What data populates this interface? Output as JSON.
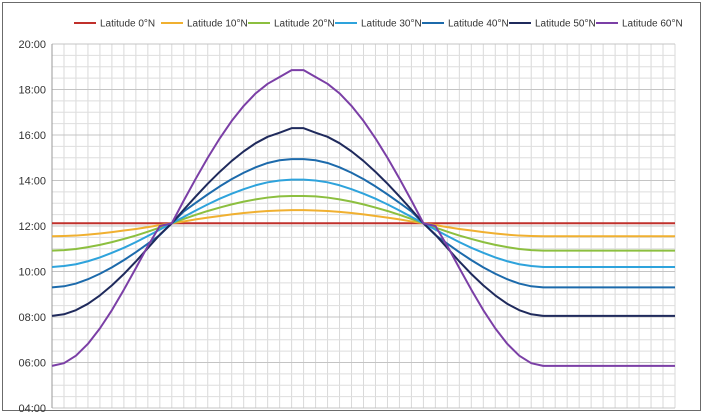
{
  "chart_data": {
    "type": "line",
    "title": "",
    "xlabel": "",
    "ylabel": "",
    "y_unit": "hours",
    "ylim": [
      4,
      20
    ],
    "y_ticks": [
      {
        "value": 4,
        "label": "04:00"
      },
      {
        "value": 6,
        "label": "06:00"
      },
      {
        "value": 8,
        "label": "08:00"
      },
      {
        "value": 10,
        "label": "10:00"
      },
      {
        "value": 12,
        "label": "12:00"
      },
      {
        "value": 14,
        "label": "14:00"
      },
      {
        "value": 16,
        "label": "16:00"
      },
      {
        "value": 18,
        "label": "18:00"
      },
      {
        "value": 20,
        "label": "20:00"
      }
    ],
    "x": [
      0,
      1,
      2,
      3,
      4,
      5,
      6,
      7,
      8,
      9,
      10,
      11,
      12,
      13,
      14,
      15,
      16,
      17,
      18,
      19,
      20,
      21,
      22,
      23,
      24,
      25,
      26,
      27,
      28,
      29,
      30,
      31,
      32,
      33,
      34,
      35,
      36,
      37,
      38,
      39,
      40,
      41,
      42,
      43,
      44,
      45,
      46,
      47,
      48,
      49,
      50,
      51,
      52
    ],
    "x_tick_labels": "none",
    "grid": true,
    "legend_position": "top",
    "series": [
      {
        "name": "Latitude 0°N",
        "color": "#c0302b",
        "values": [
          12.12,
          12.12,
          12.12,
          12.12,
          12.12,
          12.12,
          12.12,
          12.12,
          12.12,
          12.12,
          12.12,
          12.12,
          12.12,
          12.12,
          12.12,
          12.12,
          12.12,
          12.12,
          12.12,
          12.12,
          12.12,
          12.12,
          12.12,
          12.12,
          12.12,
          12.12,
          12.12,
          12.12,
          12.12,
          12.12,
          12.12,
          12.12,
          12.12,
          12.12,
          12.12,
          12.12,
          12.12,
          12.12,
          12.12,
          12.12,
          12.12,
          12.12,
          12.12,
          12.12,
          12.12,
          12.12,
          12.12,
          12.12,
          12.12,
          12.12,
          12.12,
          12.12,
          12.12
        ]
      },
      {
        "name": "Latitude 10°N",
        "color": "#f0b030",
        "values": [
          11.55,
          11.56,
          11.58,
          11.62,
          11.67,
          11.73,
          11.8,
          11.87,
          11.95,
          12.04,
          12.12,
          12.2,
          12.29,
          12.37,
          12.44,
          12.51,
          12.57,
          12.62,
          12.66,
          12.68,
          12.7,
          12.7,
          12.68,
          12.66,
          12.62,
          12.57,
          12.51,
          12.44,
          12.37,
          12.29,
          12.2,
          12.12,
          12.04,
          11.95,
          11.87,
          11.8,
          11.73,
          11.67,
          11.62,
          11.58,
          11.56,
          11.55,
          11.55,
          11.55,
          11.55,
          11.55,
          11.55,
          11.55,
          11.55,
          11.55,
          11.55,
          11.55,
          11.55
        ]
      },
      {
        "name": "Latitude 20°N",
        "color": "#8cbf3f",
        "values": [
          10.92,
          10.94,
          10.99,
          11.07,
          11.17,
          11.29,
          11.43,
          11.58,
          11.75,
          11.93,
          12.12,
          12.31,
          12.49,
          12.66,
          12.81,
          12.95,
          13.07,
          13.17,
          13.25,
          13.3,
          13.32,
          13.32,
          13.3,
          13.25,
          13.17,
          13.07,
          12.95,
          12.81,
          12.66,
          12.49,
          12.31,
          12.12,
          11.93,
          11.75,
          11.58,
          11.43,
          11.29,
          11.17,
          11.07,
          10.99,
          10.94,
          10.92,
          10.92,
          10.92,
          10.92,
          10.92,
          10.92,
          10.92,
          10.92,
          10.92,
          10.92,
          10.92,
          10.92
        ]
      },
      {
        "name": "Latitude 30°N",
        "color": "#2ea3dc",
        "values": [
          10.2,
          10.24,
          10.32,
          10.45,
          10.62,
          10.82,
          11.04,
          11.29,
          11.56,
          11.84,
          12.12,
          12.4,
          12.68,
          12.95,
          13.2,
          13.42,
          13.62,
          13.79,
          13.92,
          14.0,
          14.04,
          14.04,
          14.0,
          13.92,
          13.79,
          13.62,
          13.42,
          13.2,
          12.95,
          12.68,
          12.4,
          12.12,
          11.84,
          11.56,
          11.29,
          11.04,
          10.82,
          10.62,
          10.45,
          10.32,
          10.24,
          10.2,
          10.2,
          10.2,
          10.2,
          10.2,
          10.2,
          10.2,
          10.2,
          10.2,
          10.2,
          10.2,
          10.2
        ]
      },
      {
        "name": "Latitude 40°N",
        "color": "#1c6aab",
        "values": [
          9.3,
          9.35,
          9.47,
          9.66,
          9.9,
          10.18,
          10.5,
          10.85,
          11.22,
          11.6,
          12.12,
          12.64,
          13.02,
          13.39,
          13.74,
          14.06,
          14.34,
          14.58,
          14.77,
          14.89,
          14.94,
          14.94,
          14.89,
          14.77,
          14.58,
          14.34,
          14.06,
          13.74,
          13.39,
          13.02,
          12.64,
          12.12,
          11.6,
          11.22,
          10.85,
          10.5,
          10.18,
          9.9,
          9.66,
          9.47,
          9.35,
          9.3,
          9.3,
          9.3,
          9.3,
          9.3,
          9.3,
          9.3,
          9.3,
          9.3,
          9.3,
          9.3,
          9.3
        ]
      },
      {
        "name": "Latitude 50°N",
        "color": "#1f2a5c",
        "values": [
          8.05,
          8.12,
          8.3,
          8.58,
          8.95,
          9.39,
          9.89,
          10.44,
          11.03,
          11.62,
          12.12,
          12.72,
          13.3,
          13.86,
          14.38,
          14.86,
          15.28,
          15.64,
          15.92,
          16.1,
          16.3,
          16.3,
          16.1,
          15.92,
          15.64,
          15.28,
          14.86,
          14.38,
          13.86,
          13.3,
          12.72,
          12.12,
          11.62,
          11.03,
          10.44,
          9.89,
          9.39,
          8.95,
          8.58,
          8.3,
          8.12,
          8.05,
          8.05,
          8.05,
          8.05,
          8.05,
          8.05,
          8.05,
          8.05,
          8.05,
          8.05,
          8.05,
          8.05
        ]
      },
      {
        "name": "Latitude 60°N",
        "color": "#7b3fa6",
        "values": [
          5.85,
          5.97,
          6.3,
          6.82,
          7.5,
          8.3,
          9.2,
          10.15,
          11.12,
          12.0,
          12.12,
          13.12,
          14.08,
          15.0,
          15.85,
          16.62,
          17.28,
          17.83,
          18.25,
          18.55,
          18.85,
          18.85,
          18.55,
          18.25,
          17.83,
          17.28,
          16.62,
          15.85,
          15.0,
          14.08,
          13.12,
          12.12,
          12.0,
          11.12,
          10.15,
          9.2,
          8.3,
          7.5,
          6.82,
          6.3,
          5.97,
          5.85,
          5.85,
          5.85,
          5.85,
          5.85,
          5.85,
          5.85,
          5.85,
          5.85,
          5.85,
          5.85,
          5.85
        ]
      }
    ]
  }
}
